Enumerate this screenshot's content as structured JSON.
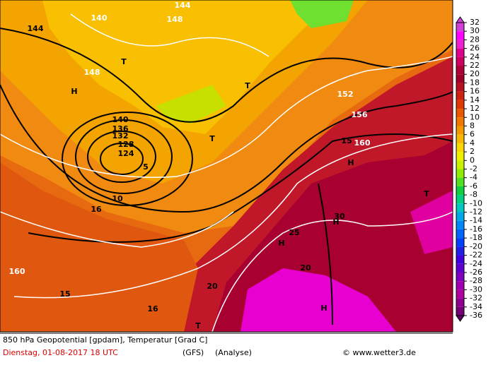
{
  "map": {
    "title": "850 hPa Geopotential [gpdam], Temperatur [Grad C]",
    "date": "Dienstag, 01-08-2017  18 UTC",
    "model": "(GFS)",
    "run": "(Analyse)",
    "source": "© www.wetter3.de",
    "labels": [
      "144",
      "140",
      "148",
      "T",
      "H",
      "T",
      "124",
      "128",
      "132",
      "136",
      "140",
      "144",
      "148",
      "152",
      "156",
      "160",
      "T",
      "H",
      "H",
      "H",
      "H",
      "T",
      "T",
      "20",
      "25",
      "30",
      "15",
      "10",
      "16",
      "5",
      "160",
      "15",
      "16",
      "20"
    ],
    "legend": {
      "ticks": [
        32,
        30,
        28,
        26,
        24,
        22,
        20,
        18,
        16,
        14,
        12,
        10,
        8,
        6,
        4,
        2,
        0,
        -2,
        -4,
        -6,
        -8,
        -10,
        -12,
        -14,
        -16,
        -18,
        -20,
        -22,
        -24,
        -26,
        -28,
        -30,
        -32,
        -34,
        -36
      ],
      "colors": [
        "#d040d8",
        "#ff00ff",
        "#f020d0",
        "#e00090",
        "#d00060",
        "#b00038",
        "#a00028",
        "#b81020",
        "#d02010",
        "#e03800",
        "#ec5800",
        "#f07800",
        "#f49800",
        "#f8b800",
        "#f8d800",
        "#eef000",
        "#c8f000",
        "#90ec00",
        "#50e020",
        "#10d040",
        "#00d080",
        "#00c8c0",
        "#00a8e8",
        "#0088f8",
        "#0064ff",
        "#0040ff",
        "#2020e8",
        "#4000e0",
        "#6000d0",
        "#8000c0",
        "#a000b0",
        "#b000a0",
        "#900090",
        "#740074",
        "#600060"
      ]
    }
  }
}
